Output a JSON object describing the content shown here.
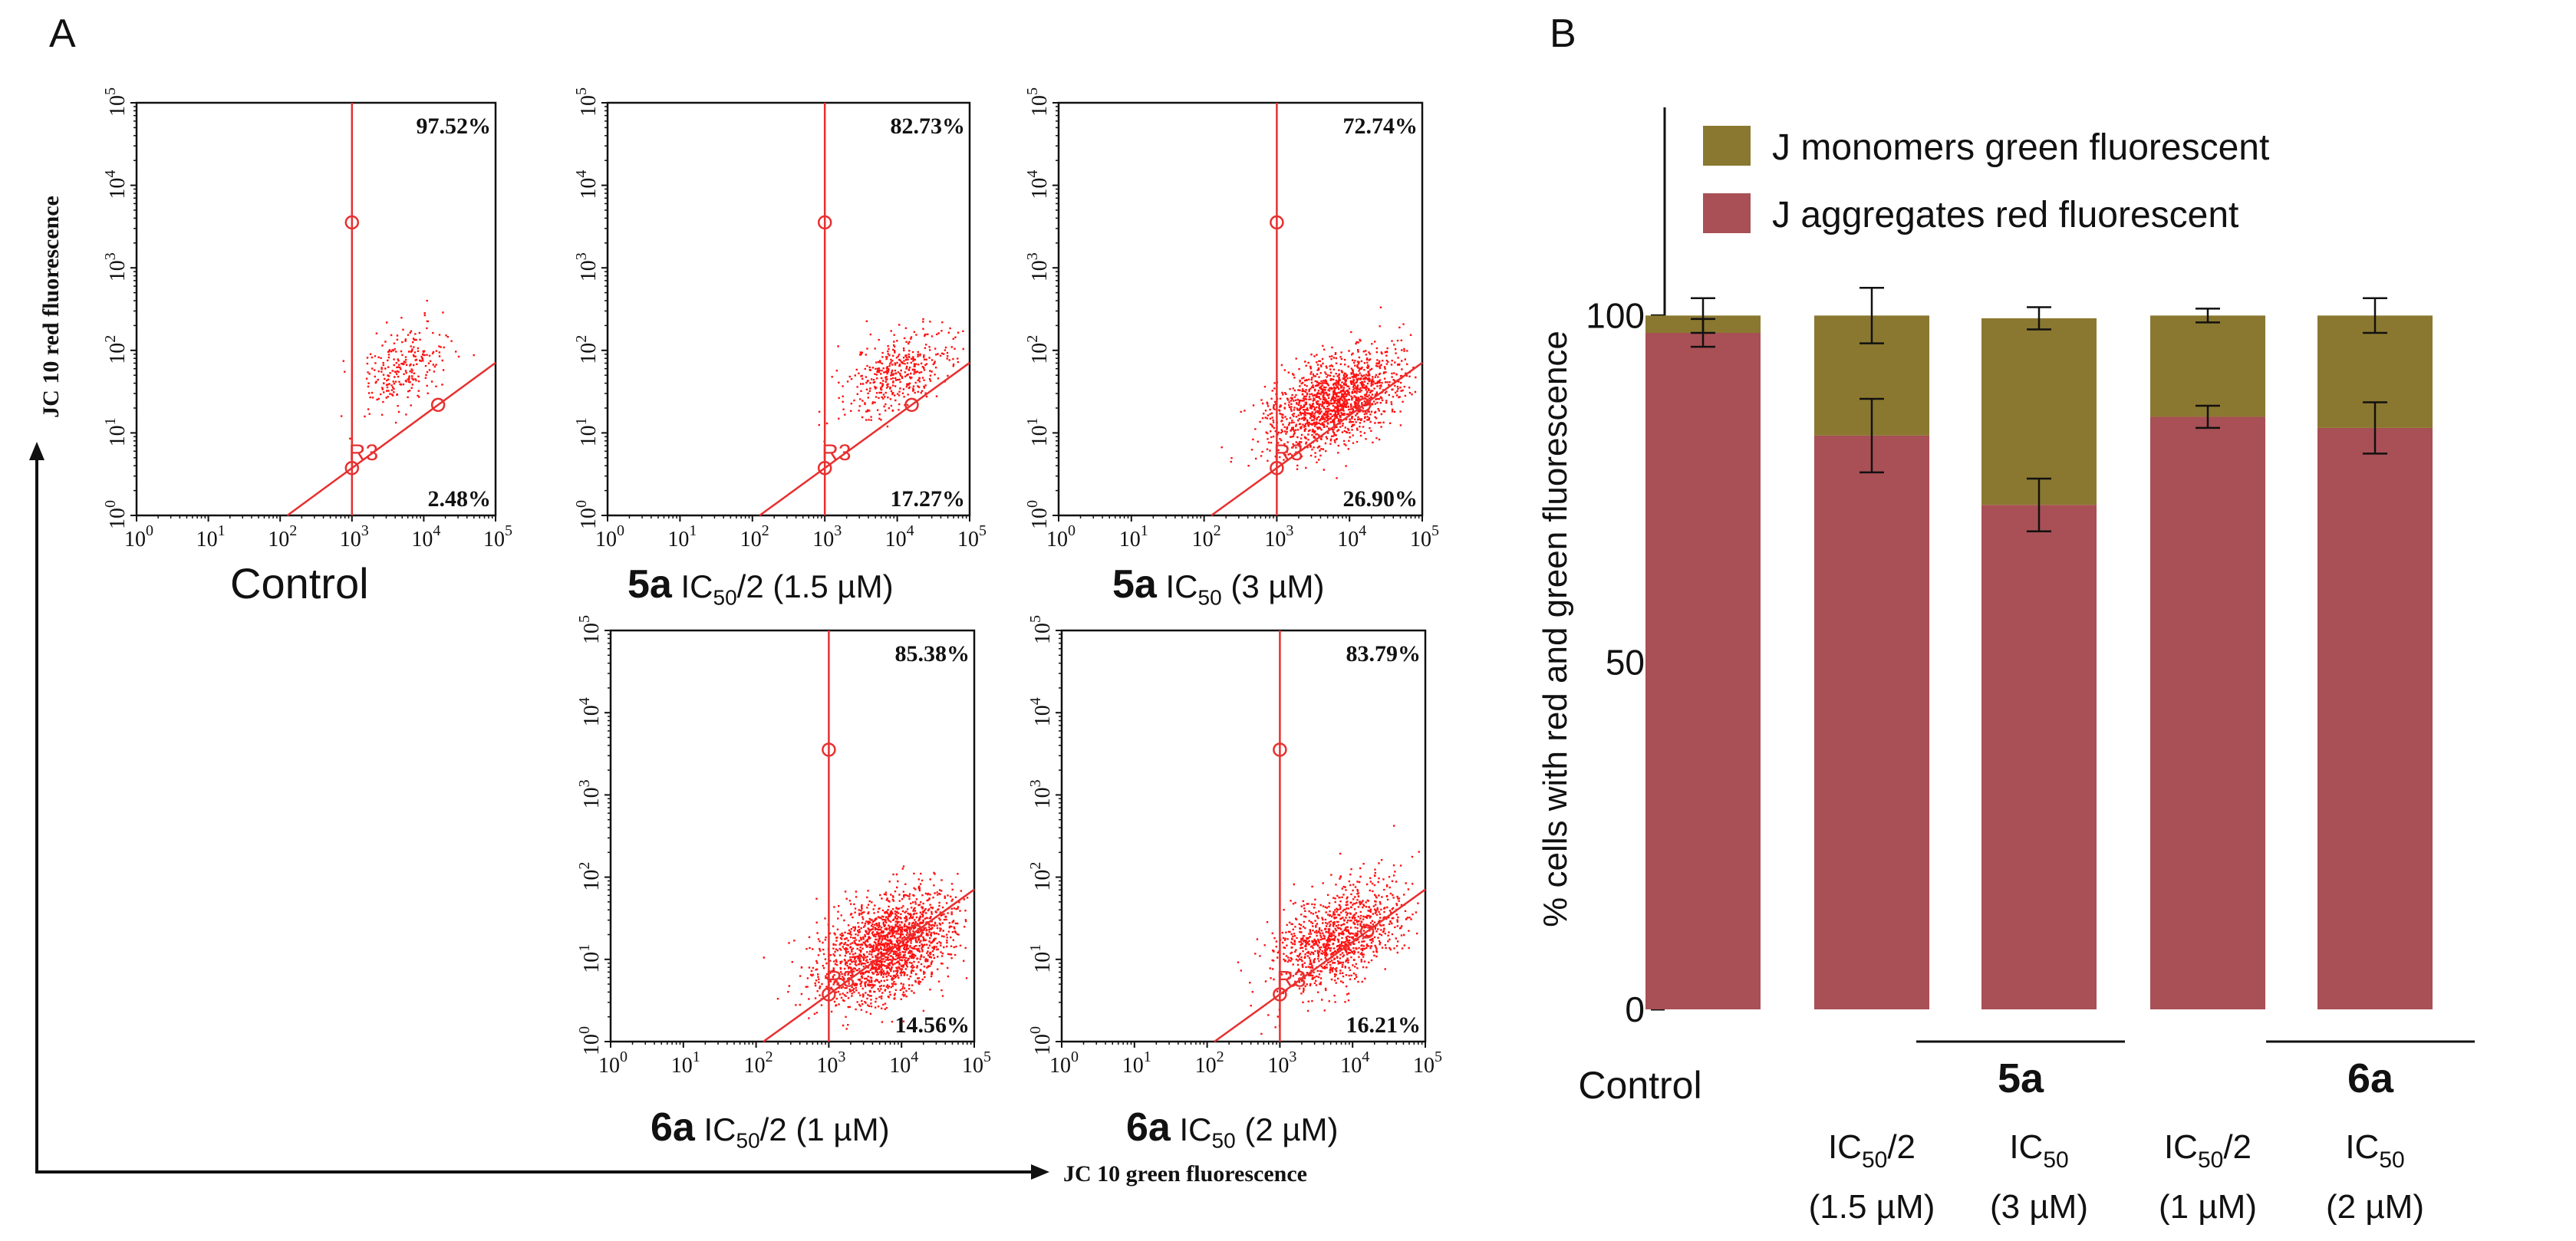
{
  "panel_a": {
    "letter": "A",
    "y_axis_label": "JC 10 red  fluorescence",
    "x_axis_label": "JC 10  green  fluorescence",
    "plots": [
      {
        "name": "control",
        "upper_pct": "97.52%",
        "lower_pct": "2.48%",
        "gate_label": "R3",
        "caption_main": "Control",
        "caption_compound": "",
        "caption_ic": "",
        "caption_sub": "",
        "caption_rest": ""
      },
      {
        "name": "5a-half",
        "upper_pct": "82.73%",
        "lower_pct": "17.27%",
        "gate_label": "R3",
        "caption_main": "",
        "caption_compound": "5a",
        "caption_ic": "IC",
        "caption_sub": "50",
        "caption_rest": "/2 (1.5 µM)"
      },
      {
        "name": "5a-full",
        "upper_pct": "72.74%",
        "lower_pct": "26.90%",
        "gate_label": "R3",
        "caption_main": "",
        "caption_compound": "5a",
        "caption_ic": "IC",
        "caption_sub": "50",
        "caption_rest": " (3 µM)"
      },
      {
        "name": "6a-half",
        "upper_pct": "85.38%",
        "lower_pct": "14.56%",
        "gate_label": "R3",
        "caption_main": "",
        "caption_compound": "6a",
        "caption_ic": "IC",
        "caption_sub": "50",
        "caption_rest": "/2 (1 µM)"
      },
      {
        "name": "6a-full",
        "upper_pct": "83.79%",
        "lower_pct": "16.21%",
        "gate_label": "R3",
        "caption_main": "",
        "caption_compound": "6a",
        "caption_ic": "IC",
        "caption_sub": "50",
        "caption_rest": " (2 µM)"
      }
    ]
  },
  "chart_data": [
    {
      "type": "scatter",
      "title": "Control",
      "xlabel": "JC 10 green fluorescence",
      "ylabel": "JC 10 red fluorescence",
      "x_scale": "log",
      "xlim": [
        1,
        100000
      ],
      "y_scale": "log",
      "ylim": [
        1,
        100000
      ],
      "tick_labels": [
        "10",
        "0",
        "10",
        "1",
        "10",
        "2",
        "10",
        "3",
        "10",
        "4",
        "10",
        "5"
      ],
      "annotations": [
        "97.52%",
        "2.48%",
        "R3"
      ]
    },
    {
      "type": "bar",
      "title": "",
      "xlabel": "",
      "ylabel": "% cells with red and  green fluorescence",
      "ylim": [
        0,
        130
      ],
      "y_ticks": [
        0,
        50,
        100
      ],
      "y_tick_labels": [
        "0",
        "50",
        "100"
      ],
      "categories": [
        "Control",
        "5a IC50/2 (1.5 µM)",
        "5a IC50 (3 µM)",
        "6a IC50/2 (1 µM)",
        "6a IC50 (2 µM)"
      ],
      "stacked": true,
      "series": [
        {
          "name": "J aggregates red fluorescent",
          "color": "#a85055",
          "values": [
            97.5,
            82.7,
            72.7,
            85.4,
            83.8
          ],
          "errors": [
            2.0,
            5.3,
            3.8,
            1.6,
            3.7
          ]
        },
        {
          "name": "J monomers green fluorescent",
          "color": "#8b7830",
          "values": [
            2.5,
            17.3,
            26.9,
            14.6,
            16.2
          ],
          "errors": [
            2.5,
            4.0,
            1.6,
            1.0,
            2.5
          ]
        }
      ],
      "legend_position": "top-left",
      "group_labels": [
        "Control",
        "5a",
        "6a"
      ],
      "x_sublabels": [
        {
          "ic": "IC",
          "sub": "50",
          "rest": "/2",
          "dose": "(1.5 µM)"
        },
        {
          "ic": "IC",
          "sub": "50",
          "rest": "",
          "dose": "(3 µM)"
        },
        {
          "ic": "IC",
          "sub": "50",
          "rest": "/2",
          "dose": "(1 µM)"
        },
        {
          "ic": "IC",
          "sub": "50",
          "rest": "",
          "dose": "(2 µM)"
        }
      ]
    }
  ],
  "panel_b": {
    "letter": "B",
    "legend": [
      {
        "label": "J monomers green fluorescent",
        "color": "#8b7830"
      },
      {
        "label": "J aggregates red fluorescent",
        "color": "#a85055"
      }
    ]
  },
  "colors": {
    "dots": "#ff1010",
    "gate": "#e83030"
  }
}
